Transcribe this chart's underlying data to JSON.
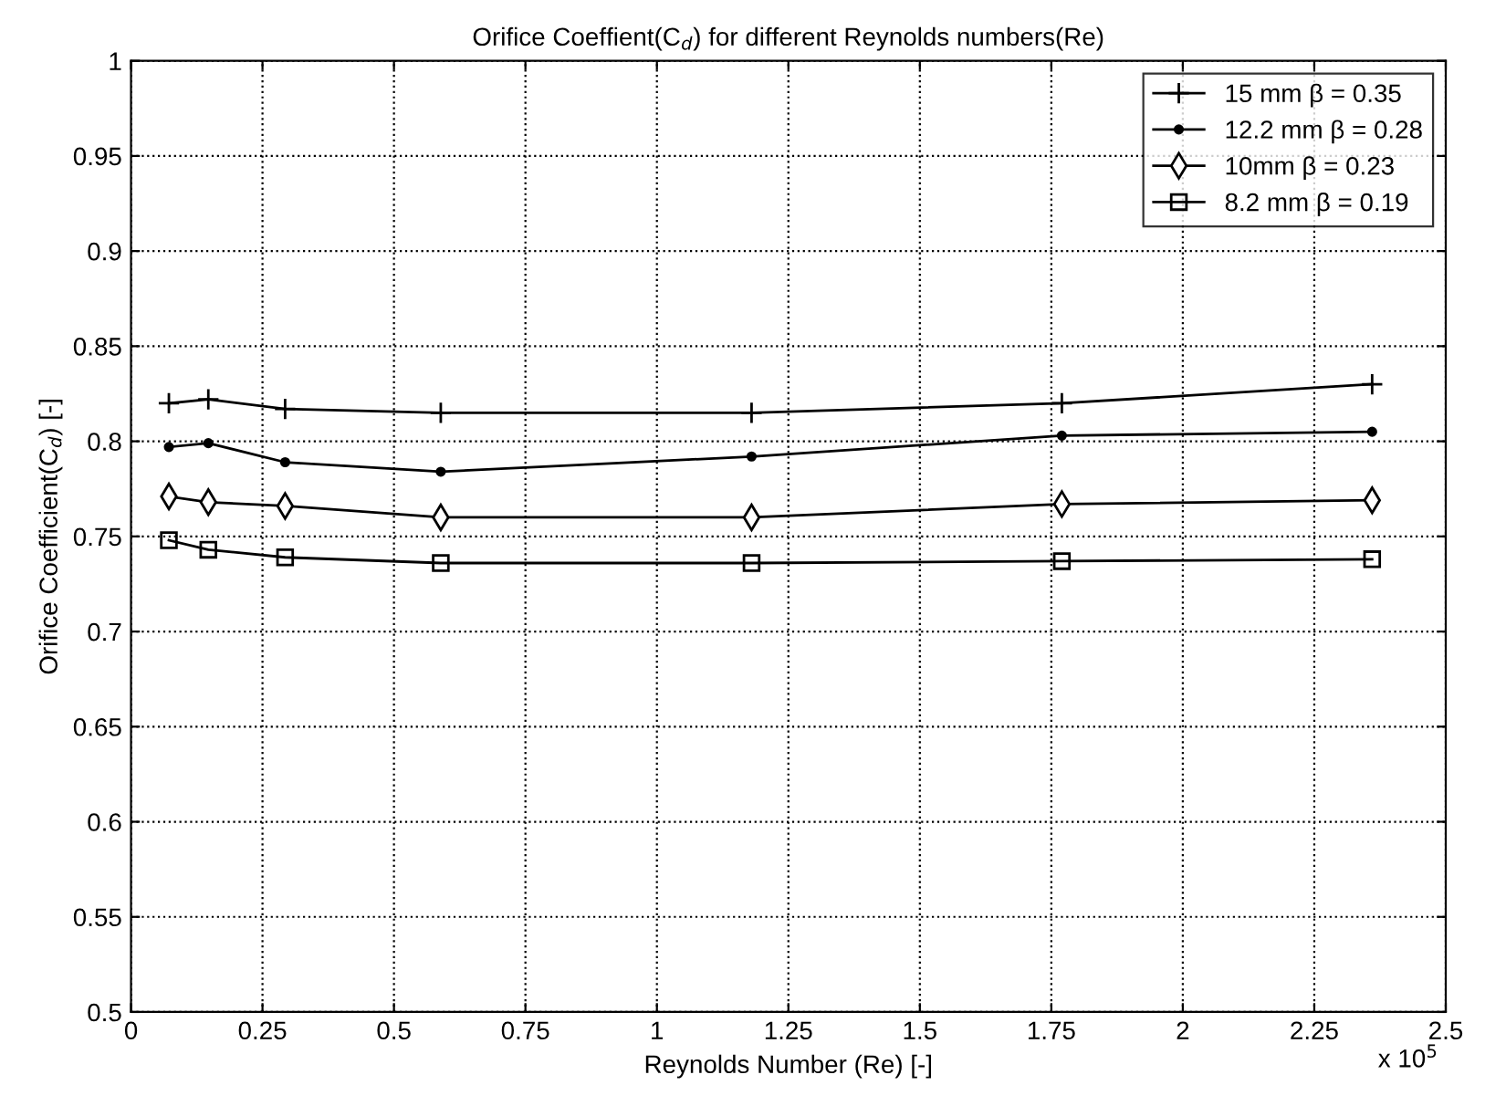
{
  "chart_data": {
    "type": "line",
    "title": "Orifice Coeffient(C$_{d}$) for different Reynolds numbers(Re)",
    "xlabel": "Reynolds Number (Re) [-]",
    "ylabel": "Orifice Coefficient(C$_{d}$) [-]",
    "x": [
      0.072,
      0.147,
      0.293,
      0.589,
      1.18,
      1.77,
      2.36
    ],
    "series": [
      {
        "name": "15 mm β = 0.35",
        "color": "#000000",
        "marker": "cross",
        "values": [
          0.82,
          0.822,
          0.817,
          0.815,
          0.815,
          0.82,
          0.83
        ]
      },
      {
        "name": "12.2 mm β = 0.28",
        "color": "#000000",
        "marker": "circle",
        "values": [
          0.797,
          0.799,
          0.789,
          0.784,
          0.792,
          0.803,
          0.805
        ]
      },
      {
        "name": "10mm β = 0.23",
        "color": "#000000",
        "marker": "diamond",
        "values": [
          0.771,
          0.768,
          0.766,
          0.76,
          0.76,
          0.767,
          0.769
        ]
      },
      {
        "name": "8.2 mm β = 0.19",
        "color": "#000000",
        "marker": "square",
        "values": [
          0.748,
          0.743,
          0.739,
          0.736,
          0.736,
          0.737,
          0.738
        ]
      }
    ],
    "xlim": [
      0,
      2.5
    ],
    "xticks": [
      0,
      0.25,
      0.5,
      0.75,
      1,
      1.25,
      1.5,
      1.75,
      2,
      2.25,
      2.5
    ],
    "ylim": [
      0.5,
      1
    ],
    "yticks": [
      0.5,
      0.55,
      0.6,
      0.65,
      0.7,
      0.75,
      0.8,
      0.85,
      0.9,
      0.95,
      1
    ],
    "annotations": [
      "x 10$^{5}$"
    ],
    "grid": true,
    "legend": "top right",
    "line_style": "solid"
  }
}
